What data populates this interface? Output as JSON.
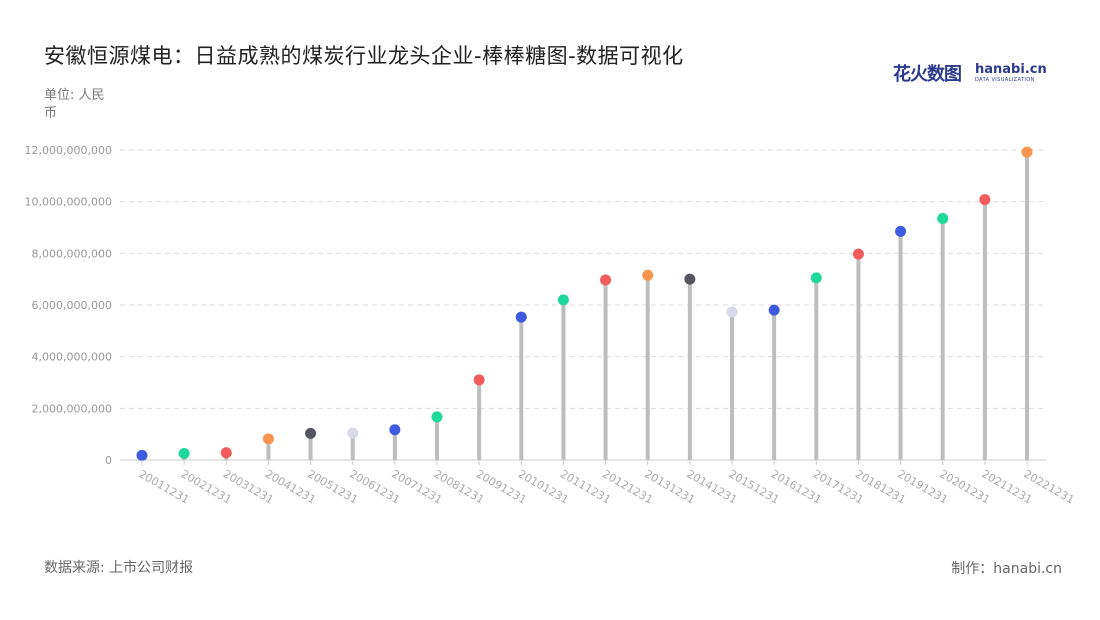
{
  "title": "安徽恒源煤电：日益成熟的煤炭行业龙头企业-棒棒糖图-数据可视化",
  "unit_label": "单位: 人民币",
  "logo": {
    "cn": "花火数图",
    "en": "hanabi.cn",
    "sub": "DATA VISUALIZATION"
  },
  "source": "数据来源: 上市公司财报",
  "credit": "制作：hanabi.cn",
  "colors": {
    "stem": "#bdbdbd",
    "grid": "#dddddd",
    "palette": [
      "#3d5ae0",
      "#1fd89b",
      "#f25c5c",
      "#f79550",
      "#555560",
      "#d8dae8"
    ]
  },
  "chart_data": {
    "type": "lollipop",
    "categories": [
      "20011231",
      "20021231",
      "20031231",
      "20041231",
      "20051231",
      "20061231",
      "20071231",
      "20081231",
      "20091231",
      "20101231",
      "20111231",
      "20121231",
      "20131231",
      "20141231",
      "20151231",
      "20161231",
      "20171231",
      "20181231",
      "20191231",
      "20201231",
      "20211231",
      "20221231"
    ],
    "values": [
      180000000,
      250000000,
      280000000,
      820000000,
      1030000000,
      1040000000,
      1170000000,
      1670000000,
      3100000000,
      5530000000,
      6200000000,
      6970000000,
      7150000000,
      7000000000,
      5730000000,
      5800000000,
      7050000000,
      7970000000,
      8850000000,
      9350000000,
      10080000000,
      11920000000
    ],
    "dot_colors": [
      "#3d5ae0",
      "#1fd89b",
      "#f25c5c",
      "#f79550",
      "#555560",
      "#d8dae8",
      "#3d5ae0",
      "#1fd89b",
      "#f25c5c",
      "#3d5ae0",
      "#1fd89b",
      "#f25c5c",
      "#f79550",
      "#555560",
      "#d8dae8",
      "#3d5ae0",
      "#1fd89b",
      "#f25c5c",
      "#3d5ae0",
      "#1fd89b",
      "#f25c5c",
      "#f79550"
    ],
    "yticks": [
      0,
      2000000000,
      4000000000,
      6000000000,
      8000000000,
      10000000000,
      12000000000
    ],
    "ytick_labels": [
      "0",
      "2,000,000,000",
      "4,000,000,000",
      "6,000,000,000",
      "8,000,000,000",
      "10,000,000,000",
      "12,000,000,000"
    ],
    "ylim": [
      0,
      12000000000
    ],
    "grid": true
  }
}
